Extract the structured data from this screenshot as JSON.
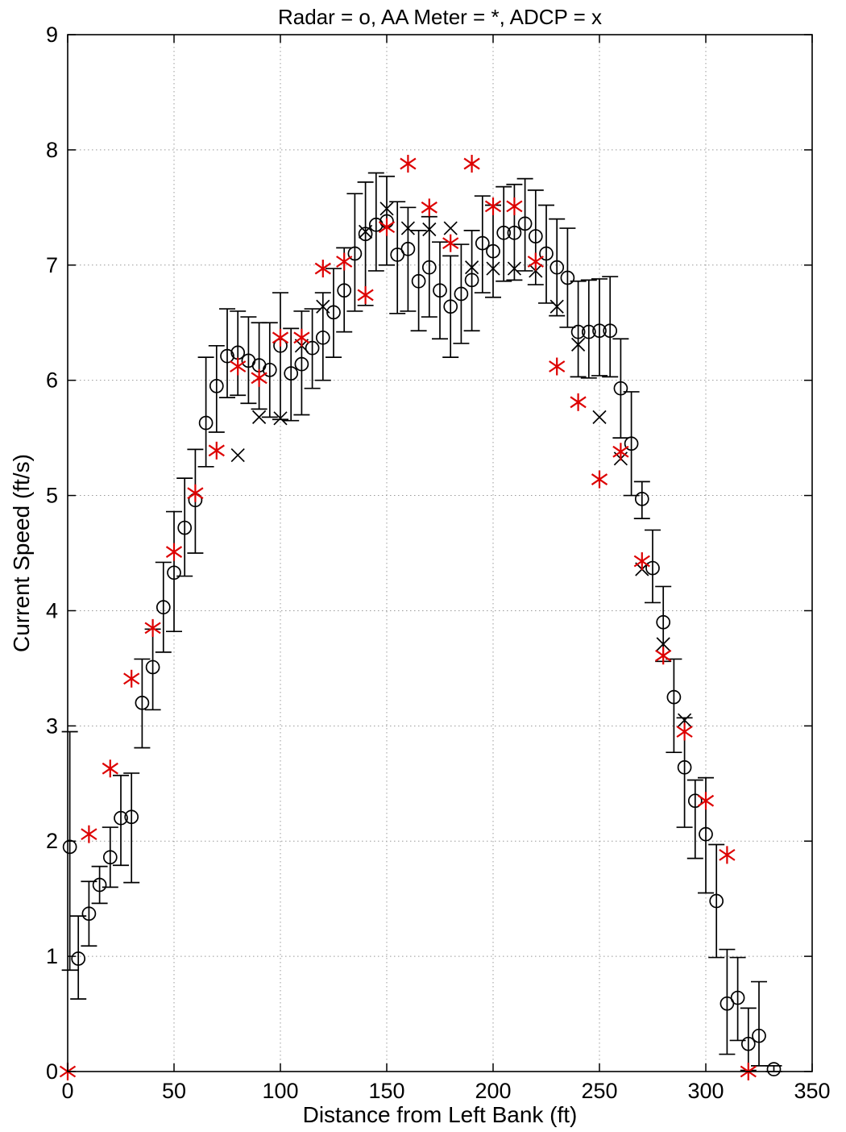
{
  "figure": {
    "background": "#ffffff"
  },
  "chart_data": {
    "type": "scatter",
    "title": "Radar = o, AA Meter = *, ADCP = x",
    "xlabel": "Distance from Left Bank (ft)",
    "ylabel": "Current Speed (ft/s)",
    "xlim": [
      0,
      350
    ],
    "ylim": [
      0,
      9
    ],
    "xticks": [
      0,
      50,
      100,
      150,
      200,
      250,
      300,
      350
    ],
    "yticks": [
      0,
      1,
      2,
      3,
      4,
      5,
      6,
      7,
      8,
      9
    ],
    "grid": "dotted",
    "legend_position": "in-title",
    "colors": {
      "radar": "#000000",
      "aa_meter": "#dd0000",
      "adcp": "#000000",
      "grid": "#999999",
      "axis": "#000000"
    },
    "series": [
      {
        "name": "Radar",
        "marker": "o",
        "has_error_bars": true,
        "points": [
          [
            1,
            1.95,
            0.88,
            2.95
          ],
          [
            5,
            0.98,
            0.63,
            1.35
          ],
          [
            10,
            1.37,
            1.09,
            1.65
          ],
          [
            15,
            1.62,
            1.46,
            1.78
          ],
          [
            20,
            1.86,
            1.6,
            2.12
          ],
          [
            25,
            2.2,
            1.79,
            2.57
          ],
          [
            30,
            2.21,
            1.64,
            2.59
          ],
          [
            35,
            3.2,
            2.81,
            3.58
          ],
          [
            40,
            3.51,
            3.14,
            3.84
          ],
          [
            45,
            4.03,
            3.64,
            4.42
          ],
          [
            50,
            4.33,
            3.82,
            4.86
          ],
          [
            55,
            4.72,
            4.3,
            5.15
          ],
          [
            60,
            4.96,
            4.5,
            5.4
          ],
          [
            65,
            5.63,
            5.25,
            6.2
          ],
          [
            70,
            5.95,
            5.55,
            6.3
          ],
          [
            75,
            6.21,
            5.85,
            6.62
          ],
          [
            80,
            6.24,
            5.87,
            6.6
          ],
          [
            85,
            6.17,
            5.8,
            6.55
          ],
          [
            90,
            6.13,
            5.75,
            6.5
          ],
          [
            95,
            6.09,
            5.68,
            6.5
          ],
          [
            100,
            6.3,
            5.66,
            6.76
          ],
          [
            105,
            6.06,
            5.65,
            6.45
          ],
          [
            110,
            6.14,
            5.7,
            6.6
          ],
          [
            115,
            6.28,
            5.93,
            6.62
          ],
          [
            120,
            6.37,
            6.0,
            6.76
          ],
          [
            125,
            6.59,
            6.2,
            6.97
          ],
          [
            130,
            6.78,
            6.42,
            7.15
          ],
          [
            135,
            7.1,
            6.6,
            7.62
          ],
          [
            140,
            7.27,
            6.65,
            7.72
          ],
          [
            145,
            7.35,
            6.95,
            7.8
          ],
          [
            150,
            7.38,
            7.0,
            7.77
          ],
          [
            155,
            7.09,
            6.58,
            7.55
          ],
          [
            160,
            7.14,
            6.6,
            7.5
          ],
          [
            165,
            6.86,
            6.43,
            7.3
          ],
          [
            170,
            6.98,
            6.55,
            7.42
          ],
          [
            175,
            6.78,
            6.36,
            7.2
          ],
          [
            180,
            6.64,
            6.2,
            7.08
          ],
          [
            185,
            6.75,
            6.32,
            7.18
          ],
          [
            190,
            6.87,
            6.43,
            7.3
          ],
          [
            195,
            7.19,
            6.76,
            7.6
          ],
          [
            200,
            7.12,
            6.72,
            7.52
          ],
          [
            205,
            7.28,
            6.86,
            7.68
          ],
          [
            210,
            7.28,
            6.87,
            7.7
          ],
          [
            215,
            7.36,
            6.95,
            7.75
          ],
          [
            220,
            7.25,
            6.83,
            7.65
          ],
          [
            225,
            7.1,
            6.67,
            7.52
          ],
          [
            230,
            6.98,
            6.56,
            7.4
          ],
          [
            235,
            6.89,
            6.46,
            7.32
          ],
          [
            240,
            6.42,
            6.03,
            6.86
          ],
          [
            245,
            6.42,
            6.02,
            6.87
          ],
          [
            250,
            6.43,
            6.04,
            6.88
          ],
          [
            255,
            6.43,
            6.03,
            6.9
          ],
          [
            260,
            5.93,
            5.5,
            6.36
          ],
          [
            265,
            5.45,
            5.0,
            5.9
          ],
          [
            270,
            4.97,
            4.8,
            5.12
          ],
          [
            275,
            4.37,
            4.07,
            4.7
          ],
          [
            280,
            3.9,
            3.56,
            4.21
          ],
          [
            285,
            3.25,
            2.77,
            3.58
          ],
          [
            290,
            2.64,
            2.12,
            3.07
          ],
          [
            295,
            2.35,
            1.85,
            2.53
          ],
          [
            300,
            2.06,
            1.55,
            2.55
          ],
          [
            305,
            1.48,
            0.99,
            1.97
          ],
          [
            310,
            0.59,
            0.15,
            1.06
          ],
          [
            315,
            0.64,
            0.27,
            0.99
          ],
          [
            320,
            0.24,
            0.01,
            0.55
          ],
          [
            325,
            0.31,
            0.05,
            0.78
          ],
          [
            332,
            0.02,
            0.0,
            0.05
          ]
        ]
      },
      {
        "name": "AA Meter",
        "marker": "*",
        "has_error_bars": false,
        "points": [
          [
            0,
            0
          ],
          [
            10,
            2.06
          ],
          [
            20,
            2.63
          ],
          [
            30,
            3.41
          ],
          [
            40,
            3.85
          ],
          [
            50,
            4.51
          ],
          [
            60,
            5.02
          ],
          [
            70,
            5.39
          ],
          [
            80,
            6.12
          ],
          [
            90,
            6.02
          ],
          [
            100,
            6.37
          ],
          [
            110,
            6.37
          ],
          [
            120,
            6.97
          ],
          [
            130,
            7.03
          ],
          [
            140,
            6.74
          ],
          [
            150,
            7.33
          ],
          [
            160,
            7.88
          ],
          [
            170,
            7.5
          ],
          [
            180,
            7.19
          ],
          [
            190,
            7.88
          ],
          [
            200,
            7.51
          ],
          [
            210,
            7.51
          ],
          [
            220,
            7.03
          ],
          [
            230,
            6.12
          ],
          [
            240,
            5.81
          ],
          [
            250,
            5.14
          ],
          [
            260,
            5.38
          ],
          [
            270,
            4.43
          ],
          [
            280,
            3.61
          ],
          [
            290,
            2.95
          ],
          [
            300,
            2.35
          ],
          [
            310,
            1.88
          ],
          [
            320,
            0
          ]
        ]
      },
      {
        "name": "ADCP",
        "marker": "x",
        "has_error_bars": false,
        "points": [
          [
            80,
            5.35
          ],
          [
            90,
            5.68
          ],
          [
            100,
            5.67
          ],
          [
            110,
            6.3
          ],
          [
            120,
            6.64
          ],
          [
            140,
            7.29
          ],
          [
            150,
            7.49
          ],
          [
            160,
            7.32
          ],
          [
            170,
            7.31
          ],
          [
            180,
            7.32
          ],
          [
            190,
            6.98
          ],
          [
            200,
            6.97
          ],
          [
            210,
            6.97
          ],
          [
            220,
            6.95
          ],
          [
            230,
            6.64
          ],
          [
            240,
            6.31
          ],
          [
            250,
            5.68
          ],
          [
            260,
            5.32
          ],
          [
            270,
            4.36
          ],
          [
            280,
            3.71
          ],
          [
            290,
            3.05
          ]
        ]
      }
    ]
  }
}
